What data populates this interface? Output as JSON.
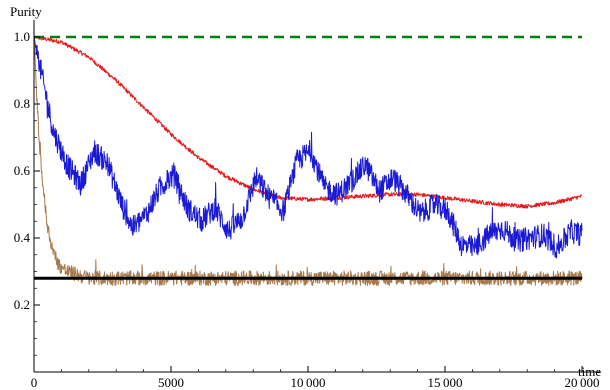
{
  "chart_data": {
    "type": "line",
    "ylabel": "Purity",
    "xlabel": "time",
    "xlim": [
      0,
      20000
    ],
    "ylim": [
      0.0,
      1.0
    ],
    "x_ticks": [
      {
        "value": 0,
        "label": "0"
      },
      {
        "value": 5000,
        "label": "5000"
      },
      {
        "value": 10000,
        "label": "10 000"
      },
      {
        "value": 15000,
        "label": "15 000"
      },
      {
        "value": 20000,
        "label": "20 000"
      }
    ],
    "y_ticks": [
      {
        "value": 0.2,
        "label": "0.2"
      },
      {
        "value": 0.4,
        "label": "0.4"
      },
      {
        "value": 0.6,
        "label": "0.6"
      },
      {
        "value": 0.8,
        "label": "0.8"
      },
      {
        "value": 1.0,
        "label": "1.0"
      }
    ],
    "series": [
      {
        "color": "#e61a1a",
        "style": "noisy-line",
        "noise": 0.006,
        "x": [
          0,
          1000,
          2000,
          3000,
          4000,
          5000,
          6000,
          7000,
          8000,
          9000,
          10000,
          11000,
          12000,
          13000,
          14000,
          15000,
          16000,
          17000,
          18000,
          19000,
          20000
        ],
        "y": [
          1.0,
          0.985,
          0.94,
          0.87,
          0.79,
          0.71,
          0.64,
          0.585,
          0.545,
          0.52,
          0.515,
          0.52,
          0.525,
          0.53,
          0.53,
          0.52,
          0.51,
          0.5,
          0.495,
          0.505,
          0.525
        ]
      },
      {
        "color": "#1a1ad4",
        "style": "noisy-line",
        "noise": 0.035,
        "x": [
          0,
          300,
          700,
          1200,
          1700,
          2200,
          2700,
          3200,
          3600,
          4100,
          4600,
          5100,
          5600,
          6100,
          6600,
          7100,
          7600,
          8100,
          8600,
          9100,
          9600,
          10100,
          10600,
          11100,
          11600,
          12100,
          12600,
          13100,
          13600,
          14100,
          14600,
          15100,
          15600,
          16100,
          16600,
          17100,
          17600,
          18100,
          18600,
          19100,
          19600,
          20000
        ],
        "y": [
          1.0,
          0.88,
          0.72,
          0.62,
          0.56,
          0.66,
          0.62,
          0.5,
          0.43,
          0.47,
          0.55,
          0.59,
          0.49,
          0.45,
          0.49,
          0.42,
          0.46,
          0.58,
          0.52,
          0.48,
          0.63,
          0.66,
          0.55,
          0.53,
          0.57,
          0.62,
          0.54,
          0.58,
          0.53,
          0.47,
          0.5,
          0.48,
          0.38,
          0.37,
          0.41,
          0.43,
          0.39,
          0.4,
          0.41,
          0.37,
          0.42,
          0.41
        ]
      },
      {
        "color": "#a67a4d",
        "style": "noisy-line",
        "noise": 0.022,
        "x": [
          0,
          50,
          100,
          200,
          300,
          400,
          500,
          700,
          900,
          1200,
          1600,
          2000,
          3000,
          5000,
          8000,
          11000,
          14000,
          17000,
          20000
        ],
        "y": [
          1.0,
          0.92,
          0.82,
          0.68,
          0.58,
          0.5,
          0.43,
          0.36,
          0.32,
          0.3,
          0.29,
          0.28,
          0.28,
          0.28,
          0.28,
          0.28,
          0.28,
          0.28,
          0.28
        ]
      },
      {
        "color": "#0a7a0a",
        "style": "dashed",
        "x": [
          0,
          20000
        ],
        "y": [
          1.0,
          1.0
        ]
      },
      {
        "color": "#000000",
        "style": "thick",
        "x": [
          0,
          20000
        ],
        "y": [
          0.28,
          0.28
        ]
      }
    ]
  }
}
